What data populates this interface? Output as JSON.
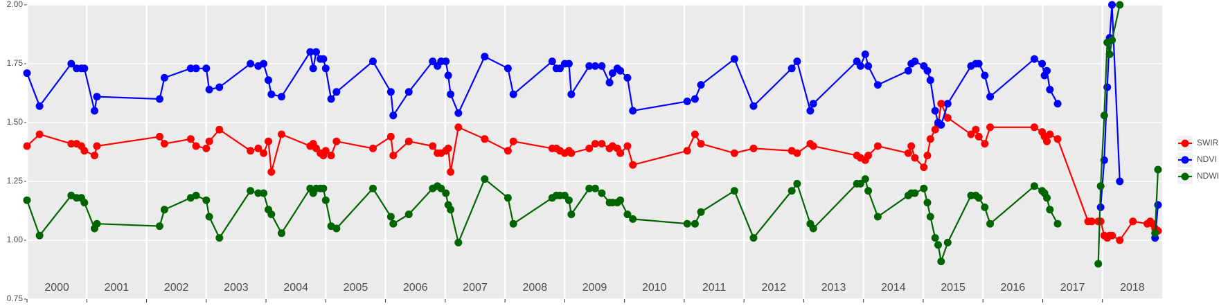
{
  "chart_data": {
    "type": "line",
    "x": [
      2000.0,
      2000.21,
      2000.74,
      2000.83,
      2000.91,
      2000.96,
      2001.13,
      2001.17,
      2002.22,
      2002.3,
      2002.74,
      2002.83,
      2003.0,
      2003.05,
      2003.22,
      2003.74,
      2003.87,
      2003.96,
      2004.04,
      2004.09,
      2004.26,
      2004.74,
      2004.79,
      2004.84,
      2004.91,
      2004.96,
      2005.0,
      2005.09,
      2005.18,
      2005.79,
      2006.09,
      2006.13,
      2006.39,
      2006.79,
      2006.87,
      2006.93,
      2007.01,
      2007.05,
      2007.09,
      2007.22,
      2007.66,
      2008.05,
      2008.14,
      2008.79,
      2008.86,
      2008.92,
      2009.0,
      2009.07,
      2009.11,
      2009.41,
      2009.51,
      2009.62,
      2009.75,
      2009.8,
      2009.88,
      2009.93,
      2010.05,
      2010.14,
      2011.05,
      2011.18,
      2011.28,
      2011.84,
      2012.16,
      2012.8,
      2012.89,
      2013.11,
      2013.16,
      2013.89,
      2013.95,
      2014.03,
      2014.08,
      2014.24,
      2014.75,
      2014.8,
      2014.86,
      2015.01,
      2015.07,
      2015.12,
      2015.2,
      2015.25,
      2015.3,
      2015.41,
      2015.8,
      2015.88,
      2015.93,
      2016.03,
      2016.12,
      2016.86,
      2016.99,
      2017.03,
      2017.07,
      2017.12,
      2017.25,
      2017.76,
      2017.82,
      2017.93,
      2017.97,
      2018.03,
      2018.08,
      2018.12,
      2018.16,
      2018.29,
      2018.51,
      2018.75,
      2018.8,
      2018.84,
      2018.88,
      2018.93
    ],
    "series": [
      {
        "name": "SWIR",
        "color": "#ff0000",
        "values": [
          1.4,
          1.45,
          1.41,
          1.41,
          1.4,
          1.38,
          1.36,
          1.4,
          1.44,
          1.41,
          1.43,
          1.4,
          1.39,
          1.42,
          1.47,
          1.38,
          1.39,
          1.37,
          1.42,
          1.29,
          1.45,
          1.4,
          1.41,
          1.39,
          1.37,
          1.36,
          1.38,
          1.36,
          1.42,
          1.39,
          1.44,
          1.36,
          1.42,
          1.4,
          1.37,
          1.37,
          1.38,
          1.39,
          1.29,
          1.48,
          1.43,
          1.38,
          1.42,
          1.39,
          1.39,
          1.38,
          1.37,
          1.38,
          1.37,
          1.39,
          1.41,
          1.41,
          1.39,
          1.4,
          1.39,
          1.37,
          1.4,
          1.32,
          1.38,
          1.45,
          1.41,
          1.37,
          1.39,
          1.38,
          1.37,
          1.41,
          1.4,
          1.36,
          1.35,
          1.34,
          1.36,
          1.4,
          1.37,
          1.4,
          1.35,
          1.31,
          1.36,
          1.43,
          1.47,
          1.49,
          1.58,
          1.52,
          1.45,
          1.47,
          1.44,
          1.41,
          1.48,
          1.48,
          1.46,
          1.44,
          1.42,
          1.45,
          1.43,
          1.08,
          1.08,
          1.08,
          1.08,
          1.02,
          1.01,
          1.02,
          1.02,
          1.0,
          1.08,
          1.07,
          1.08,
          1.07,
          1.05,
          1.04
        ]
      },
      {
        "name": "NDVI",
        "color": "#0000ff",
        "values": [
          1.71,
          1.57,
          1.75,
          1.73,
          1.73,
          1.73,
          1.55,
          1.61,
          1.6,
          1.69,
          1.73,
          1.73,
          1.73,
          1.64,
          1.65,
          1.75,
          1.74,
          1.75,
          1.68,
          1.62,
          1.61,
          1.8,
          1.73,
          1.8,
          1.77,
          1.77,
          1.73,
          1.6,
          1.63,
          1.76,
          1.63,
          1.53,
          1.63,
          1.76,
          1.74,
          1.76,
          1.76,
          1.7,
          1.62,
          1.54,
          1.78,
          1.73,
          1.62,
          1.76,
          1.73,
          1.73,
          1.75,
          1.75,
          1.62,
          1.74,
          1.74,
          1.74,
          1.67,
          1.71,
          1.73,
          1.72,
          1.69,
          1.55,
          1.59,
          1.6,
          1.66,
          1.77,
          1.57,
          1.73,
          1.76,
          1.55,
          1.58,
          1.76,
          1.74,
          1.79,
          1.74,
          1.66,
          1.72,
          1.75,
          1.76,
          1.74,
          1.72,
          1.68,
          1.55,
          1.5,
          1.49,
          1.58,
          1.74,
          1.75,
          1.75,
          1.7,
          1.61,
          1.77,
          1.75,
          1.7,
          1.72,
          1.64,
          1.58,
          null,
          null,
          null,
          1.14,
          1.34,
          1.65,
          1.86,
          2.0,
          1.25,
          null,
          null,
          null,
          null,
          1.01,
          1.15
        ]
      },
      {
        "name": "NDWI",
        "color": "#006400",
        "values": [
          1.17,
          1.02,
          1.19,
          1.18,
          1.18,
          1.16,
          1.05,
          1.07,
          1.06,
          1.13,
          1.18,
          1.19,
          1.17,
          1.1,
          1.01,
          1.21,
          1.2,
          1.2,
          1.13,
          1.11,
          1.03,
          1.22,
          1.2,
          1.22,
          1.22,
          1.22,
          1.17,
          1.06,
          1.05,
          1.22,
          1.1,
          1.07,
          1.11,
          1.22,
          1.23,
          1.22,
          1.2,
          1.15,
          1.13,
          0.99,
          1.26,
          1.18,
          1.07,
          1.18,
          1.19,
          1.19,
          1.19,
          1.17,
          1.11,
          1.22,
          1.22,
          1.2,
          1.16,
          1.16,
          1.16,
          1.17,
          1.11,
          1.09,
          1.07,
          1.07,
          1.12,
          1.21,
          1.01,
          1.21,
          1.24,
          1.07,
          1.05,
          1.24,
          1.24,
          1.26,
          1.21,
          1.1,
          1.19,
          1.2,
          1.2,
          1.22,
          1.16,
          1.1,
          1.01,
          0.98,
          0.91,
          0.99,
          1.19,
          1.19,
          1.18,
          1.14,
          1.07,
          1.23,
          1.21,
          1.2,
          1.18,
          1.13,
          1.07,
          null,
          null,
          0.9,
          1.23,
          1.53,
          1.84,
          1.79,
          1.85,
          2.0,
          null,
          null,
          null,
          null,
          1.03,
          1.3
        ]
      }
    ],
    "xlim": [
      2000,
      2019
    ],
    "xticks": [
      2000,
      2001,
      2002,
      2003,
      2004,
      2005,
      2006,
      2007,
      2008,
      2009,
      2010,
      2011,
      2012,
      2013,
      2014,
      2015,
      2016,
      2017,
      2018
    ],
    "ylim": [
      0.75,
      2.0
    ],
    "yticks": [
      0.75,
      {
        "value": 1.0,
        "label": "1.00"
      },
      1.25,
      {
        "value": 1.5,
        "label": "1.50"
      },
      1.75,
      {
        "value": 2.0,
        "label": "2.00"
      }
    ],
    "grid": true,
    "legend": "right"
  }
}
